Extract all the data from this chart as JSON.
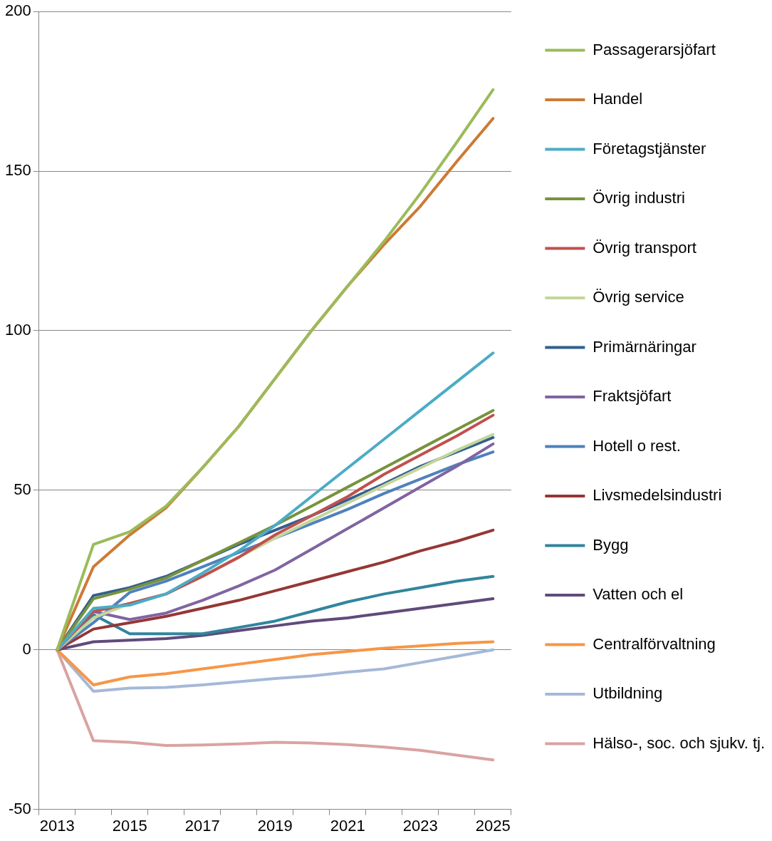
{
  "chart_data": {
    "type": "line",
    "categories": [
      "2013",
      null,
      "2015",
      null,
      "2017",
      null,
      "2019",
      null,
      "2021",
      null,
      "2023",
      null,
      "2025"
    ],
    "ylim": [
      -50,
      200
    ],
    "yticks": [
      -50,
      0,
      50,
      100,
      150,
      200
    ],
    "grid": "y",
    "legend": "right",
    "marker": "none",
    "line_style": "solid",
    "series": [
      {
        "name": "Passagerarsjöfart",
        "color": "#9bbb59",
        "values": [
          0,
          33,
          37,
          45,
          57,
          70,
          85,
          100,
          114,
          128,
          143,
          159,
          175.5
        ]
      },
      {
        "name": "Handel",
        "color": "#cc7a35",
        "values": [
          0,
          26,
          36,
          44.5,
          57,
          70,
          85,
          100,
          114,
          127,
          139,
          153,
          166.5
        ]
      },
      {
        "name": "Företagstjänster",
        "color": "#4bacc6",
        "values": [
          0,
          13,
          14,
          17.5,
          24,
          31,
          39,
          48,
          57,
          66,
          75,
          84,
          93
        ]
      },
      {
        "name": "Övrig industri",
        "color": "#77933c",
        "values": [
          0,
          16,
          19,
          22.5,
          28,
          33.5,
          39,
          45,
          51,
          57,
          63,
          69,
          75
        ]
      },
      {
        "name": "Övrig transport",
        "color": "#c0504d",
        "values": [
          0,
          12,
          14.5,
          17.5,
          23,
          29,
          36,
          42,
          48,
          55,
          61,
          67,
          73.5
        ]
      },
      {
        "name": "Övrig service",
        "color": "#c3d69b",
        "values": [
          0,
          10,
          14.5,
          17.5,
          23,
          29,
          35,
          40.5,
          46,
          51.5,
          57,
          62.5,
          67.5
        ]
      },
      {
        "name": "Primärnäringar",
        "color": "#335f8f",
        "values": [
          0,
          17,
          19.5,
          23,
          28,
          33,
          37.5,
          42,
          47,
          52,
          57.5,
          62,
          66.5
        ]
      },
      {
        "name": "Fraktsjöfart",
        "color": "#8064a2",
        "values": [
          0,
          12,
          9.5,
          11.5,
          15.5,
          20,
          25,
          31.5,
          38,
          44.5,
          51,
          57.5,
          64.5
        ]
      },
      {
        "name": "Hotell o rest.",
        "color": "#4f81bd",
        "values": [
          0,
          8.5,
          18,
          21.5,
          26,
          30.5,
          35,
          39.5,
          44,
          49,
          53.5,
          58,
          62
        ]
      },
      {
        "name": "Livsmedelsindustri",
        "color": "#953735",
        "values": [
          0,
          6.5,
          8.5,
          10.5,
          13,
          15.5,
          18.5,
          21.5,
          24.5,
          27.5,
          31,
          34,
          37.5
        ]
      },
      {
        "name": "Bygg",
        "color": "#31859c",
        "values": [
          0,
          11,
          5,
          5,
          5,
          7,
          9,
          12,
          15,
          17.5,
          19.5,
          21.5,
          23
        ]
      },
      {
        "name": "Vatten och el",
        "color": "#604a7b",
        "values": [
          0,
          2.5,
          3,
          3.5,
          4.5,
          6,
          7.5,
          9,
          10,
          11.5,
          13,
          14.5,
          16
        ]
      },
      {
        "name": "Centralförvaltning",
        "color": "#f79646",
        "values": [
          0,
          -11,
          -8.5,
          -7.5,
          -6,
          -4.5,
          -3,
          -1.5,
          -0.5,
          0.5,
          1.2,
          2,
          2.5
        ]
      },
      {
        "name": "Utbildning",
        "color": "#a5b8d8",
        "values": [
          0,
          -13,
          -12,
          -11.8,
          -11,
          -10,
          -9,
          -8.2,
          -7,
          -6,
          -4,
          -2,
          0
        ]
      },
      {
        "name": "Hälso-, soc. och sjukv. tj.",
        "color": "#d9a3a1",
        "values": [
          0,
          -28.5,
          -29,
          -30,
          -29.8,
          -29.5,
          -29,
          -29.2,
          -29.7,
          -30.5,
          -31.5,
          -33,
          -34.5
        ]
      }
    ]
  }
}
